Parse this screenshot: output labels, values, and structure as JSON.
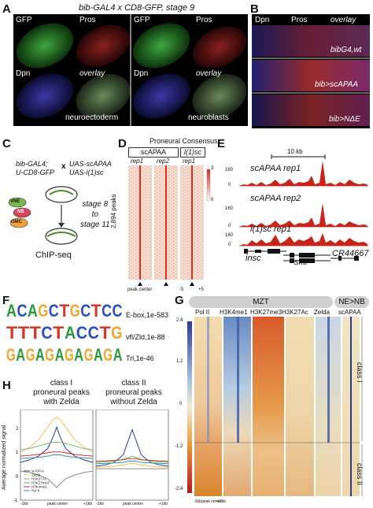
{
  "panels": {
    "A": {
      "label": "A",
      "title": "bib-GAL4 x CD8-GFP, stage 9",
      "left": {
        "gfp": "GFP",
        "pros": "Pros",
        "dpn": "Dpn",
        "overlay": "overlay",
        "caption": "neuroectoderm"
      },
      "right": {
        "gfp": "GFP",
        "pros": "Pros",
        "dpn": "Dpn",
        "overlay": "overlay",
        "caption": "neuroblasts"
      }
    },
    "B": {
      "label": "B",
      "headers": {
        "dpn": "Dpn",
        "pros": "Pros",
        "overlay": "overlay"
      },
      "row_labels": [
        "bibG4,wt",
        "bib>scAPAA",
        "bib>NΔE"
      ]
    },
    "C": {
      "label": "C",
      "cross_left_1": "bib-GAL4;",
      "cross_left_2": "U-CD8-GFP",
      "cross_x": "x",
      "cross_right_1": "UAS-scAPAA",
      "cross_right_2": "UAS-l(1)sc",
      "cells": [
        "VNE",
        "NB",
        "GMC"
      ],
      "stage_text": [
        "stage 8",
        "to",
        "stage 11"
      ],
      "method": "ChIP-seq"
    },
    "D": {
      "label": "D",
      "title": "Proneural Consensus",
      "group_scAPAA": "scAPAA",
      "group_l1sc": "l(1)sc",
      "reps": [
        "rep1",
        "rep2",
        "rep1"
      ],
      "ylabel": "2,894 peaks",
      "scale_max": "3",
      "scale_min": "0",
      "xlabel": "peak center",
      "ticks_minus": "-5",
      "ticks_plus": "+5"
    },
    "E": {
      "label": "E",
      "scale_bar": "10 kb",
      "tracks": [
        {
          "name": "scAPAA rep1",
          "ymax": "160",
          "ymin": "0"
        },
        {
          "name": "scAPAA rep2",
          "ymax": "160",
          "ymin": "0"
        },
        {
          "name": "l(1)sc rep1",
          "ymax": "160",
          "ymin": "0"
        }
      ],
      "genes": [
        "insc",
        "sktl",
        "CR44667"
      ]
    },
    "F": {
      "label": "F",
      "motifs": [
        {
          "seq": "ACAGCTGCTCC",
          "name": "E-box,1e-583"
        },
        {
          "seq": "TTTCTACCTG",
          "name": "vfl/Zld,1e-88"
        },
        {
          "seq": "GAGAGAGAGAGA",
          "name": "Trl,1e-46"
        }
      ],
      "colors": {
        "A": "#2a9a3a",
        "C": "#2a4fc2",
        "G": "#f2a52c",
        "T": "#d23a2a"
      }
    },
    "G": {
      "label": "G",
      "group_mzt": "MZT",
      "group_nenb": "NE>NB",
      "columns": [
        "Pol II",
        "H3K4me1",
        "H3K27me3",
        "H3K27Ac",
        "Zelda",
        "scAPAA"
      ],
      "colorbar": [
        "2.4",
        "1.2",
        "0",
        "-1.2",
        "-2.4"
      ],
      "class_1": "class I",
      "class_2": "class II",
      "xlabels": [
        "-2kb",
        "peak center",
        "+2kb"
      ]
    },
    "H": {
      "label": "H",
      "left_title": [
        "class I",
        "proneural peaks",
        "with Zelda"
      ],
      "right_title": [
        "class II",
        "proneural peaks",
        "without Zelda"
      ],
      "ylabel": "Average normalized signal",
      "yticks": [
        "2",
        "1",
        "0",
        "-1"
      ],
      "xticks": [
        "-1kb",
        "peak center",
        "+1kb"
      ],
      "legend": [
        "scAPAA",
        "Zelda",
        "H3K27Ac",
        "H3K27me3",
        "H3K4me1",
        "Pol II"
      ]
    }
  },
  "chart_data": [
    {
      "type": "line",
      "title": "class I proneural peaks with Zelda",
      "xlabel": "",
      "ylabel": "Average normalized signal",
      "ylim": [
        -1.2,
        2.4
      ],
      "x": [
        -1,
        -0.75,
        -0.5,
        -0.25,
        -0.1,
        0,
        0.1,
        0.25,
        0.5,
        0.75,
        1
      ],
      "series": [
        {
          "name": "scAPAA",
          "values": [
            0.3,
            0.4,
            0.55,
            0.85,
            1.3,
            1.7,
            1.3,
            0.85,
            0.55,
            0.4,
            0.3
          ]
        },
        {
          "name": "Zelda",
          "values": [
            0.7,
            0.9,
            1.2,
            1.7,
            2.0,
            2.1,
            2.0,
            1.7,
            1.2,
            0.9,
            0.7
          ]
        },
        {
          "name": "H3K27Ac",
          "values": [
            0.8,
            0.85,
            0.95,
            1.05,
            1.1,
            1.1,
            1.1,
            1.05,
            0.95,
            0.85,
            0.8
          ]
        },
        {
          "name": "H3K27me3",
          "values": [
            -0.05,
            -0.1,
            -0.2,
            -0.35,
            -0.55,
            -0.7,
            -0.55,
            -0.35,
            -0.2,
            -0.1,
            -0.05
          ]
        },
        {
          "name": "H3K4me1",
          "values": [
            0.55,
            0.58,
            0.62,
            0.68,
            0.72,
            0.72,
            0.72,
            0.68,
            0.62,
            0.58,
            0.55
          ]
        },
        {
          "name": "Pol II",
          "values": [
            0.45,
            0.48,
            0.5,
            0.55,
            0.6,
            0.6,
            0.6,
            0.55,
            0.5,
            0.48,
            0.45
          ]
        }
      ]
    },
    {
      "type": "line",
      "title": "class II proneural peaks without Zelda",
      "xlabel": "",
      "ylabel": "",
      "ylim": [
        -1.2,
        2.4
      ],
      "x": [
        -1,
        -0.75,
        -0.5,
        -0.25,
        -0.1,
        0,
        0.1,
        0.25,
        0.5,
        0.75,
        1
      ],
      "series": [
        {
          "name": "scAPAA",
          "values": [
            0.15,
            0.2,
            0.3,
            0.6,
            1.2,
            1.6,
            1.2,
            0.6,
            0.3,
            0.2,
            0.15
          ]
        },
        {
          "name": "Zelda",
          "values": [
            0.1,
            0.12,
            0.15,
            0.2,
            0.25,
            0.25,
            0.25,
            0.2,
            0.15,
            0.12,
            0.1
          ]
        },
        {
          "name": "H3K27Ac",
          "values": [
            0.3,
            0.32,
            0.35,
            0.42,
            0.5,
            0.55,
            0.5,
            0.42,
            0.35,
            0.32,
            0.3
          ]
        },
        {
          "name": "H3K27me3",
          "values": [
            0.05,
            0.05,
            0.05,
            0.05,
            0.05,
            0.05,
            0.05,
            0.05,
            0.05,
            0.05,
            0.05
          ]
        },
        {
          "name": "H3K4me1",
          "values": [
            0.35,
            0.36,
            0.38,
            0.4,
            0.45,
            0.45,
            0.45,
            0.4,
            0.38,
            0.36,
            0.35
          ]
        },
        {
          "name": "Pol II",
          "values": [
            0.25,
            0.26,
            0.28,
            0.3,
            0.35,
            0.35,
            0.35,
            0.3,
            0.28,
            0.26,
            0.25
          ]
        }
      ]
    }
  ]
}
